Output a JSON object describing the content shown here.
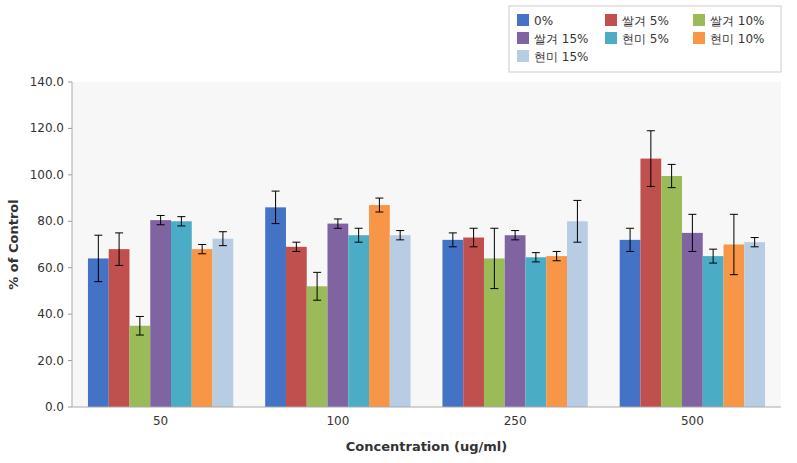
{
  "chart_data": {
    "type": "bar",
    "categories": [
      "50",
      "100",
      "250",
      "500"
    ],
    "series": [
      {
        "name": "0%",
        "color": "#4472C4",
        "values": [
          64.0,
          86.0,
          72.0,
          72.0
        ],
        "errors": [
          10.0,
          7.0,
          3.0,
          5.0
        ]
      },
      {
        "name": "쌀겨 5%",
        "color": "#C0504D",
        "values": [
          68.0,
          69.0,
          73.0,
          107.0
        ],
        "errors": [
          7.0,
          2.0,
          4.0,
          12.0
        ]
      },
      {
        "name": "쌀겨 10%",
        "color": "#9BBB59",
        "values": [
          35.0,
          52.0,
          64.0,
          99.5
        ],
        "errors": [
          4.0,
          6.0,
          13.0,
          5.0
        ]
      },
      {
        "name": "쌀겨 15%",
        "color": "#8064A2",
        "values": [
          80.5,
          79.0,
          74.0,
          75.0
        ],
        "errors": [
          2.0,
          2.0,
          2.0,
          8.0
        ]
      },
      {
        "name": "현미 5%",
        "color": "#4BACC6",
        "values": [
          80.0,
          74.0,
          64.5,
          65.0
        ],
        "errors": [
          2.0,
          3.0,
          2.0,
          3.0
        ]
      },
      {
        "name": "현미 10%",
        "color": "#F79646",
        "values": [
          68.0,
          87.0,
          65.0,
          70.0
        ],
        "errors": [
          2.0,
          3.0,
          2.0,
          13.0
        ]
      },
      {
        "name": "현미 15%",
        "color": "#B8CCE4",
        "values": [
          72.5,
          74.0,
          80.0,
          71.0
        ],
        "errors": [
          3.0,
          2.0,
          9.0,
          2.0
        ]
      }
    ],
    "xlabel": "Concentration (ug/ml)",
    "ylabel": "% of Control",
    "ylim": [
      0,
      140
    ],
    "yticks": [
      {
        "value": 0,
        "label": "0.0"
      },
      {
        "value": 20,
        "label": "20.0"
      },
      {
        "value": 40,
        "label": "40.0"
      },
      {
        "value": 60,
        "label": "60.0"
      },
      {
        "value": 80,
        "label": "80.0"
      },
      {
        "value": 100,
        "label": "100.0"
      },
      {
        "value": 120,
        "label": "120.0"
      },
      {
        "value": 140,
        "label": "140.0"
      }
    ],
    "grid": false,
    "legend": "upper right"
  }
}
